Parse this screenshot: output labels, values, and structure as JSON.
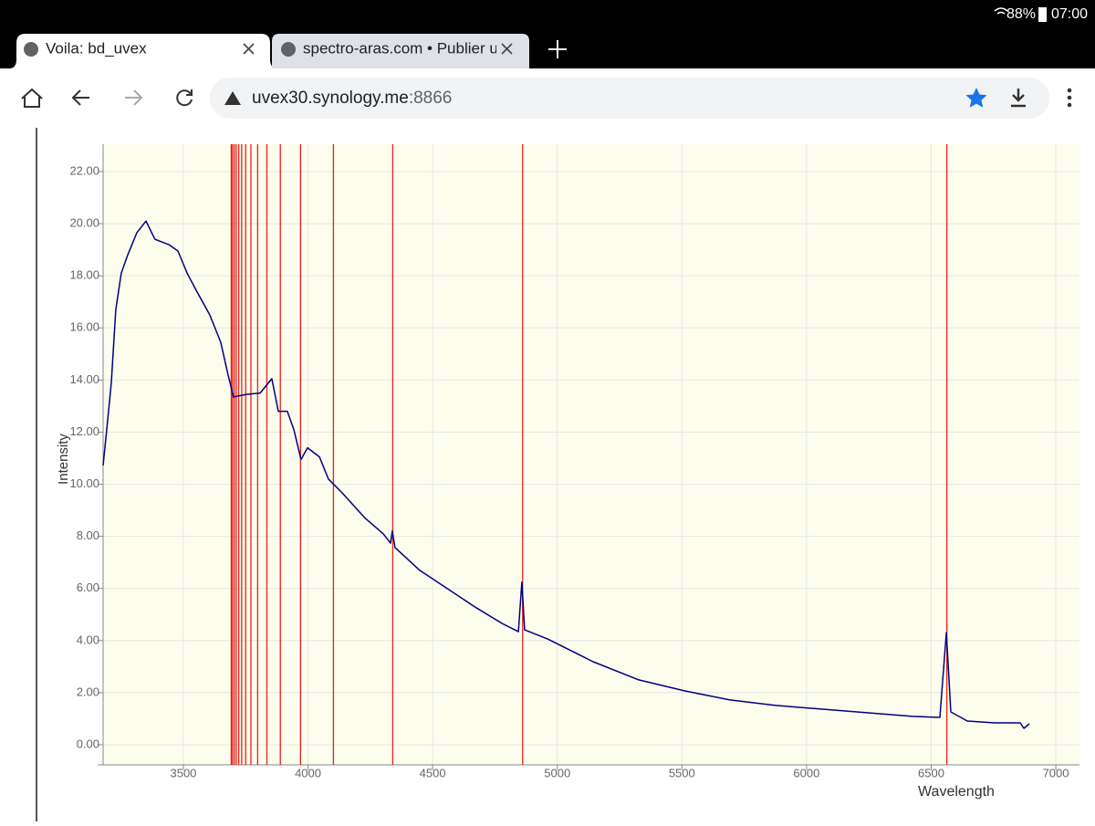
{
  "status_bar": {
    "battery": "88%",
    "time": "07:00"
  },
  "tabs": [
    {
      "title": "Voila: bd_uvex"
    },
    {
      "title": "spectro-aras.com • Publier u"
    }
  ],
  "address_bar": {
    "host": "uvex30.synology.me",
    "port": ":8866"
  },
  "chart_data": {
    "type": "line",
    "x_label": "Wavelength",
    "y_label": "Intensity",
    "color": "#000080",
    "x": [
      3178,
      3192.5,
      3211,
      3229,
      3251,
      3277,
      3313,
      3350,
      3386,
      3441,
      3478,
      3515,
      3551,
      3606,
      3650,
      3679,
      3701,
      3753,
      3808,
      3855,
      3881,
      3917,
      3943,
      3972,
      3998,
      4046,
      4082,
      4137,
      4229,
      4302,
      4331,
      4338,
      4349,
      4448,
      4558,
      4668,
      4778,
      4844,
      4858,
      4869,
      4961,
      5144,
      5327,
      5510,
      5693,
      5876,
      6059,
      6242,
      6425,
      6535,
      6561,
      6579,
      6645,
      6755,
      6857,
      6872,
      6894
    ],
    "values": [
      10.72,
      12.1,
      13.9,
      16.7,
      18.1,
      18.8,
      19.65,
      20.1,
      19.4,
      19.2,
      18.95,
      18.1,
      17.45,
      16.5,
      15.45,
      14.2,
      13.35,
      13.45,
      13.5,
      14.05,
      12.8,
      12.8,
      12.1,
      10.95,
      11.4,
      11.05,
      10.2,
      9.67,
      8.7,
      8.1,
      7.74,
      8.2,
      7.57,
      6.7,
      6.0,
      5.3,
      4.66,
      4.34,
      6.24,
      4.41,
      4.06,
      3.19,
      2.49,
      2.07,
      1.72,
      1.51,
      1.37,
      1.23,
      1.09,
      1.05,
      4.31,
      1.26,
      0.91,
      0.84,
      0.84,
      0.63,
      0.81
    ],
    "reference_lines": {
      "color": "#e8201a",
      "values": [
        3692,
        3697,
        3704,
        3712,
        3722,
        3734,
        3750,
        3771,
        3798,
        3835,
        3889,
        3970,
        4102,
        4340,
        4861,
        6563
      ]
    },
    "xlim": [
      3178,
      7095
    ],
    "ylim": [
      -0.77,
      23.05
    ],
    "xticks": [
      3500,
      4000,
      4500,
      5000,
      5500,
      6000,
      6500,
      7000
    ],
    "yticks": [
      {
        "value": 0,
        "label": "0.00"
      },
      {
        "value": 2,
        "label": "2.00"
      },
      {
        "value": 4,
        "label": "4.00"
      },
      {
        "value": 6,
        "label": "6.00"
      },
      {
        "value": 8,
        "label": "8.00"
      },
      {
        "value": 10,
        "label": "10.00"
      },
      {
        "value": 12,
        "label": "12.00"
      },
      {
        "value": 14,
        "label": "14.00"
      },
      {
        "value": 16,
        "label": "16.00"
      },
      {
        "value": 18,
        "label": "18.00"
      },
      {
        "value": 20,
        "label": "20.00"
      },
      {
        "value": 22,
        "label": "22.00"
      }
    ],
    "grid": true,
    "plot_background": "#fdfdee"
  }
}
